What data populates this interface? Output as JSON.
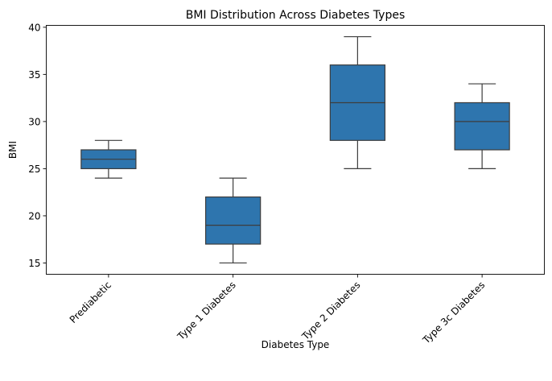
{
  "chart_data": {
    "type": "box",
    "title": "BMI Distribution Across Diabetes Types",
    "xlabel": "Diabetes Type",
    "ylabel": "BMI",
    "ylim": [
      13.8,
      40.2
    ],
    "yticks": [
      15,
      20,
      25,
      30,
      35,
      40
    ],
    "categories": [
      "Prediabetic",
      "Type 1 Diabetes",
      "Type 2 Diabetes",
      "Type 3c Diabetes"
    ],
    "boxes": [
      {
        "category": "Prediabetic",
        "whisker_low": 24,
        "q1": 25,
        "median": 26,
        "q3": 27,
        "whisker_high": 28
      },
      {
        "category": "Type 1 Diabetes",
        "whisker_low": 15,
        "q1": 17,
        "median": 19,
        "q3": 22,
        "whisker_high": 24
      },
      {
        "category": "Type 2 Diabetes",
        "whisker_low": 25,
        "q1": 28,
        "median": 32,
        "q3": 36,
        "whisker_high": 39
      },
      {
        "category": "Type 3c Diabetes",
        "whisker_low": 25,
        "q1": 27,
        "median": 30,
        "q3": 32,
        "whisker_high": 34
      }
    ],
    "box_color": "#2e75ae",
    "line_color": "#3d3d3d",
    "grid": false,
    "legend": "none",
    "xtick_rotation": "45 degrees"
  }
}
